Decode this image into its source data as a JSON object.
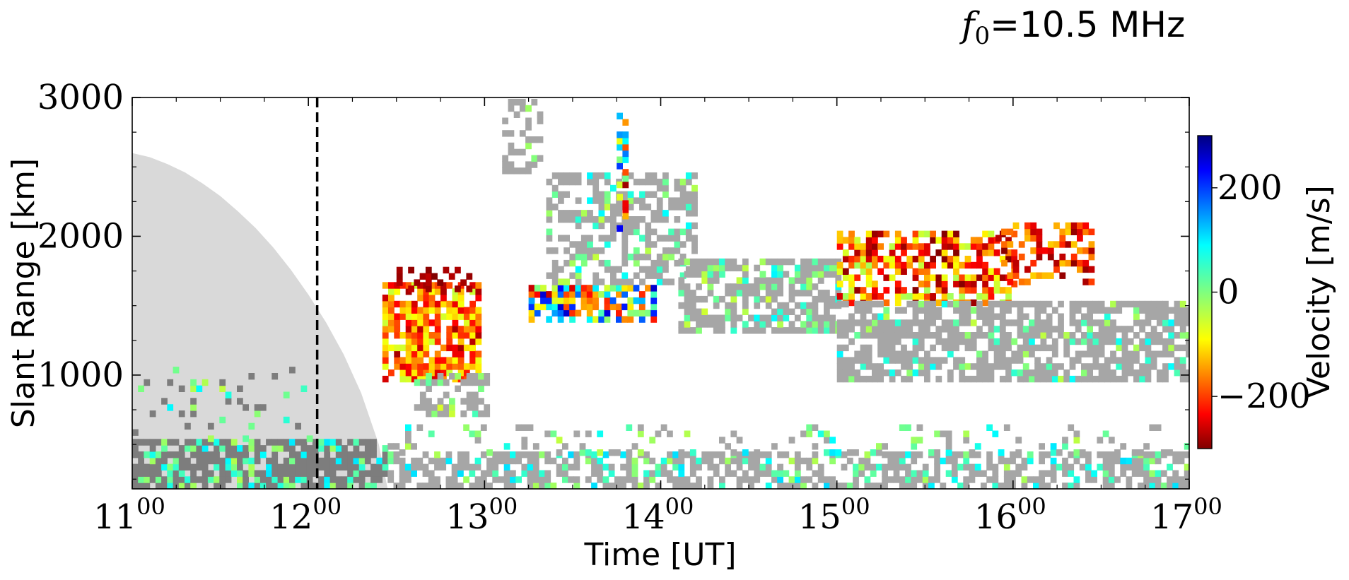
{
  "chart_data": {
    "type": "heatmap",
    "title": "f0=10.5 MHz",
    "title_parts": {
      "symbol": "f",
      "subscript": "0",
      "rest": "=10.5 MHz"
    },
    "xlabel": "Time [UT]",
    "ylabel": "Slant Range [km]",
    "xlim": [
      11,
      17
    ],
    "ylim": [
      180,
      3000
    ],
    "x_ticks": [
      {
        "value": 11,
        "hour": "11",
        "min": "00"
      },
      {
        "value": 12,
        "hour": "12",
        "min": "00"
      },
      {
        "value": 13,
        "hour": "13",
        "min": "00"
      },
      {
        "value": 14,
        "hour": "14",
        "min": "00"
      },
      {
        "value": 15,
        "hour": "15",
        "min": "00"
      },
      {
        "value": 16,
        "hour": "16",
        "min": "00"
      },
      {
        "value": 17,
        "hour": "17",
        "min": "00"
      }
    ],
    "y_ticks": [
      {
        "value": 1000,
        "label": "1000"
      },
      {
        "value": 2000,
        "label": "2000"
      },
      {
        "value": 3000,
        "label": "3000"
      }
    ],
    "vertical_marker": {
      "x": 12.05,
      "style": "dashed"
    },
    "colorbar": {
      "label": "Velocity [m/s]",
      "range": [
        -300,
        300
      ],
      "ticks": [
        {
          "value": 200,
          "label": "200"
        },
        {
          "value": 0,
          "label": "0"
        },
        {
          "value": -200,
          "label": "−200"
        }
      ],
      "colormap": "jet_r"
    },
    "colors": {
      "ground_scatter": "#a6a6a6",
      "dark_scatter": "#7d7d7d",
      "shadow_region": "#d9d9d9"
    },
    "shadow_region": [
      [
        11.0,
        2600
      ],
      [
        11.1,
        2570
      ],
      [
        11.2,
        2520
      ],
      [
        11.3,
        2460
      ],
      [
        11.4,
        2380
      ],
      [
        11.5,
        2290
      ],
      [
        11.6,
        2180
      ],
      [
        11.7,
        2060
      ],
      [
        11.8,
        1920
      ],
      [
        11.9,
        1760
      ],
      [
        12.0,
        1580
      ],
      [
        12.1,
        1380
      ],
      [
        12.2,
        1150
      ],
      [
        12.3,
        870
      ],
      [
        12.4,
        500
      ],
      [
        12.45,
        180
      ]
    ],
    "regions": [
      {
        "name": "early-low-band",
        "x": [
          11.0,
          12.45
        ],
        "y": [
          180,
          520
        ],
        "color": "dark",
        "density": 0.85,
        "colored_share": 0.3,
        "v": [
          -30,
          90
        ]
      },
      {
        "name": "early-mid-echoes",
        "x": [
          11.0,
          12.0
        ],
        "y": [
          520,
          1050
        ],
        "color": "dark",
        "density": 0.12,
        "colored_share": 0.4,
        "v": [
          -40,
          80
        ]
      },
      {
        "name": "low-band",
        "x": [
          12.45,
          17.0
        ],
        "y": [
          180,
          420
        ],
        "color": "gray",
        "density": 0.65,
        "colored_share": 0.25,
        "v": [
          -30,
          100
        ]
      },
      {
        "name": "low-scattered",
        "x": [
          12.45,
          17.0
        ],
        "y": [
          420,
          620
        ],
        "color": "gray",
        "density": 0.18,
        "colored_share": 0.4,
        "v": [
          -40,
          90
        ]
      },
      {
        "name": "burst-1230",
        "x": [
          12.42,
          12.98
        ],
        "y": [
          950,
          1650
        ],
        "color": "vel",
        "density": 0.78,
        "v": [
          -280,
          -40
        ]
      },
      {
        "name": "burst-1230-tails",
        "x": [
          12.5,
          12.9
        ],
        "y": [
          1600,
          1780
        ],
        "color": "vel",
        "density": 0.4,
        "v": [
          -300,
          -260
        ]
      },
      {
        "name": "burst-1230-gray",
        "x": [
          12.6,
          13.0
        ],
        "y": [
          700,
          1000
        ],
        "color": "gray",
        "density": 0.5,
        "colored_share": 0.3,
        "v": [
          -60,
          40
        ]
      },
      {
        "name": "band-1310",
        "x": [
          13.25,
          13.95
        ],
        "y": [
          1380,
          1650
        ],
        "color": "vel",
        "density": 0.75,
        "v": [
          -260,
          260
        ]
      },
      {
        "name": "diag-1330",
        "x": [
          13.35,
          14.2
        ],
        "y": [
          1650,
          2450
        ],
        "color": "gray",
        "density": 0.55,
        "colored_share": 0.2,
        "v": [
          -40,
          80
        ]
      },
      {
        "name": "gray-1400",
        "x": [
          14.1,
          15.0
        ],
        "y": [
          1300,
          1800
        ],
        "color": "gray",
        "density": 0.7,
        "colored_share": 0.2,
        "v": [
          -50,
          80
        ]
      },
      {
        "name": "band-1500",
        "x": [
          15.0,
          16.0
        ],
        "y": [
          1500,
          2000
        ],
        "color": "vel",
        "density": 0.6,
        "v": [
          -300,
          -20
        ]
      },
      {
        "name": "gray-1500",
        "x": [
          15.0,
          17.0
        ],
        "y": [
          950,
          1500
        ],
        "color": "gray",
        "density": 0.7,
        "colored_share": 0.12,
        "v": [
          -40,
          80
        ]
      },
      {
        "name": "band-1600",
        "x": [
          15.9,
          16.45
        ],
        "y": [
          1650,
          2100
        ],
        "color": "vel",
        "density": 0.45,
        "v": [
          -300,
          -100
        ]
      },
      {
        "name": "spikes-1345",
        "x": [
          13.75,
          13.8
        ],
        "y": [
          1900,
          2850
        ],
        "color": "vel",
        "density": 0.5,
        "v": [
          -300,
          250
        ]
      },
      {
        "name": "top-1315",
        "x": [
          13.1,
          13.3
        ],
        "y": [
          2450,
          2950
        ],
        "color": "gray",
        "density": 0.55,
        "colored_share": 0.1,
        "v": [
          -30,
          50
        ]
      }
    ]
  }
}
